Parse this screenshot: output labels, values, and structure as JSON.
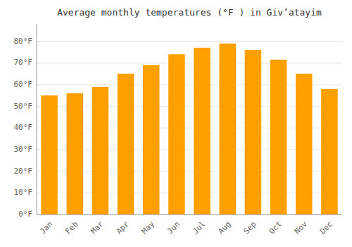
{
  "chart_data": {
    "type": "bar",
    "title": "Average monthly temperatures (°F ) in Giv’atayim",
    "categories": [
      "Jan",
      "Feb",
      "Mar",
      "Apr",
      "May",
      "Jun",
      "Jul",
      "Aug",
      "Sep",
      "Oct",
      "Nov",
      "Dec"
    ],
    "values": [
      55,
      56,
      59,
      65,
      69,
      74,
      77,
      79,
      76,
      71.5,
      65,
      58
    ],
    "color": "#FFA000",
    "ylim": [
      0,
      88
    ],
    "yticks": [
      {
        "value": 0,
        "label": "0°F"
      },
      {
        "value": 10,
        "label": "10°F"
      },
      {
        "value": 20,
        "label": "20°F"
      },
      {
        "value": 30,
        "label": "30°F"
      },
      {
        "value": 40,
        "label": "40°F"
      },
      {
        "value": 50,
        "label": "50°F"
      },
      {
        "value": 60,
        "label": "60°F"
      },
      {
        "value": 70,
        "label": "70°F"
      },
      {
        "value": 80,
        "label": "80°F"
      }
    ],
    "grid": true
  }
}
